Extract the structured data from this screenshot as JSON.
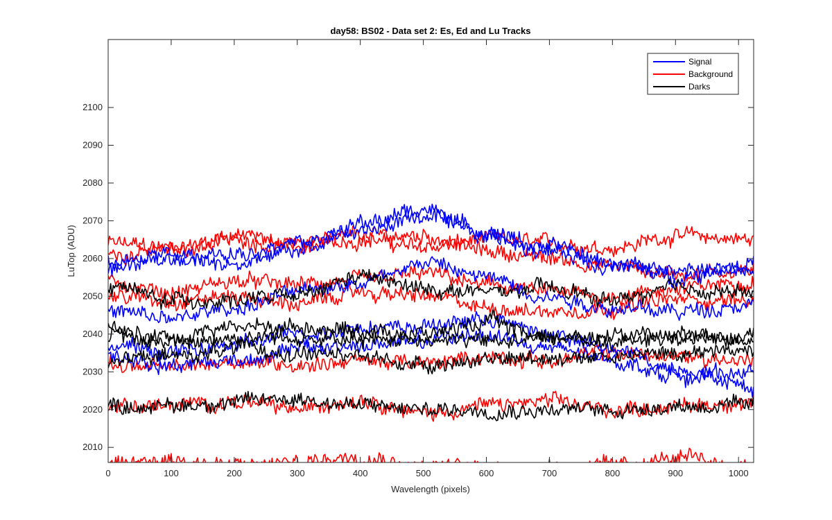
{
  "chart_data": {
    "type": "line",
    "title": "day58: BS02 - Data set 2: Es, Ed and Lu Tracks",
    "xlabel": "Wavelength (pixels)",
    "ylabel": "LuTop (ADU)",
    "xlim": [
      0,
      1024
    ],
    "ylim": [
      2006,
      2118
    ],
    "xticks": [
      0,
      100,
      200,
      300,
      400,
      500,
      600,
      700,
      800,
      900,
      1000
    ],
    "yticks": [
      2010,
      2020,
      2030,
      2040,
      2050,
      2060,
      2070,
      2080,
      2090,
      2100
    ],
    "grid": false,
    "legend_position": "top-right",
    "legend": [
      {
        "name": "Signal",
        "color": "#0000ff"
      },
      {
        "name": "Background",
        "color": "#ff0000"
      },
      {
        "name": "Darks",
        "color": "#000000"
      }
    ],
    "series": [
      {
        "group": "Signal",
        "color": "#0000ff",
        "x": [
          0,
          100,
          200,
          300,
          400,
          500,
          600,
          700,
          800,
          900,
          1024
        ],
        "y": [
          2059,
          2061,
          2058,
          2064,
          2067,
          2071,
          2066,
          2062,
          2058,
          2057,
          2057
        ]
      },
      {
        "group": "Signal",
        "color": "#0000ff",
        "x": [
          0,
          100,
          200,
          300,
          400,
          500,
          600,
          700,
          800,
          900,
          1024
        ],
        "y": [
          2057,
          2060,
          2061,
          2063,
          2069,
          2073,
          2067,
          2063,
          2059,
          2055,
          2059
        ]
      },
      {
        "group": "Signal",
        "color": "#0000ff",
        "x": [
          0,
          100,
          200,
          300,
          400,
          500,
          600,
          700,
          800,
          900,
          1024
        ],
        "y": [
          2046,
          2044,
          2047,
          2051,
          2054,
          2059,
          2055,
          2050,
          2047,
          2046,
          2048
        ]
      },
      {
        "group": "Signal",
        "color": "#0000ff",
        "x": [
          0,
          100,
          200,
          300,
          400,
          500,
          600,
          700,
          800,
          900,
          1024
        ],
        "y": [
          2037,
          2035,
          2037,
          2040,
          2042,
          2042,
          2044,
          2040,
          2036,
          2031,
          2026
        ]
      },
      {
        "group": "Signal",
        "color": "#0000ff",
        "x": [
          0,
          100,
          200,
          300,
          400,
          500,
          600,
          700,
          800,
          900,
          1024
        ],
        "y": [
          2034,
          2032,
          2033,
          2036,
          2037,
          2038,
          2040,
          2036,
          2033,
          2029,
          2030
        ]
      },
      {
        "group": "Background",
        "color": "#ff0000",
        "x": [
          0,
          100,
          200,
          300,
          400,
          500,
          600,
          700,
          800,
          900,
          1024
        ],
        "y": [
          2064,
          2063,
          2066,
          2064,
          2065,
          2063,
          2065,
          2064,
          2063,
          2066,
          2065
        ]
      },
      {
        "group": "Background",
        "color": "#ff0000",
        "x": [
          0,
          100,
          200,
          300,
          400,
          500,
          600,
          700,
          800,
          900,
          1024
        ],
        "y": [
          2061,
          2062,
          2065,
          2063,
          2066,
          2066,
          2062,
          2060,
          2058,
          2056,
          2057
        ]
      },
      {
        "group": "Background",
        "color": "#ff0000",
        "x": [
          0,
          100,
          200,
          300,
          400,
          500,
          600,
          700,
          800,
          900,
          1024
        ],
        "y": [
          2054,
          2051,
          2054,
          2053,
          2054,
          2056,
          2053,
          2051,
          2050,
          2052,
          2054
        ]
      },
      {
        "group": "Background",
        "color": "#ff0000",
        "x": [
          0,
          100,
          200,
          300,
          400,
          500,
          600,
          700,
          800,
          900,
          1024
        ],
        "y": [
          2050,
          2049,
          2050,
          2048,
          2051,
          2050,
          2047,
          2046,
          2047,
          2049,
          2049
        ]
      },
      {
        "group": "Background",
        "color": "#ff0000",
        "x": [
          0,
          100,
          200,
          300,
          400,
          500,
          600,
          700,
          800,
          900,
          1024
        ],
        "y": [
          2032,
          2031,
          2033,
          2032,
          2033,
          2032,
          2034,
          2033,
          2035,
          2034,
          2033
        ]
      },
      {
        "group": "Background",
        "color": "#ff0000",
        "x": [
          0,
          100,
          200,
          300,
          400,
          500,
          600,
          700,
          800,
          900,
          1024
        ],
        "y": [
          2021,
          2021,
          2022,
          2020,
          2023,
          2019,
          2021,
          2022,
          2020,
          2021,
          2022
        ]
      },
      {
        "group": "Background",
        "color": "#ff0000",
        "x": [
          0,
          100,
          200,
          300,
          400,
          500,
          600,
          700,
          800,
          900,
          1024
        ],
        "y": [
          2005,
          2007,
          2005,
          2006,
          2008,
          2005,
          2005,
          2005,
          2005,
          2007,
          2005
        ]
      },
      {
        "group": "Darks",
        "color": "#000000",
        "x": [
          0,
          100,
          200,
          300,
          400,
          500,
          600,
          700,
          800,
          900,
          1024
        ],
        "y": [
          2053,
          2049,
          2049,
          2050,
          2055,
          2052,
          2051,
          2052,
          2049,
          2052,
          2051
        ]
      },
      {
        "group": "Darks",
        "color": "#000000",
        "x": [
          0,
          100,
          200,
          300,
          400,
          500,
          600,
          700,
          800,
          900,
          1024
        ],
        "y": [
          2041,
          2039,
          2042,
          2042,
          2041,
          2040,
          2043,
          2039,
          2038,
          2040,
          2040
        ]
      },
      {
        "group": "Darks",
        "color": "#000000",
        "x": [
          0,
          100,
          200,
          300,
          400,
          500,
          600,
          700,
          800,
          900,
          1024
        ],
        "y": [
          2039,
          2038,
          2039,
          2039,
          2038,
          2039,
          2038,
          2039,
          2040,
          2039,
          2039
        ]
      },
      {
        "group": "Darks",
        "color": "#000000",
        "x": [
          0,
          100,
          200,
          300,
          400,
          500,
          600,
          700,
          800,
          900,
          1024
        ],
        "y": [
          2033,
          2034,
          2036,
          2035,
          2034,
          2032,
          2033,
          2034,
          2034,
          2035,
          2036
        ]
      },
      {
        "group": "Darks",
        "color": "#000000",
        "x": [
          0,
          100,
          200,
          300,
          400,
          500,
          600,
          700,
          800,
          900,
          1024
        ],
        "y": [
          2021,
          2021,
          2022,
          2023,
          2021,
          2020,
          2020,
          2020,
          2020,
          2021,
          2021
        ]
      }
    ]
  }
}
